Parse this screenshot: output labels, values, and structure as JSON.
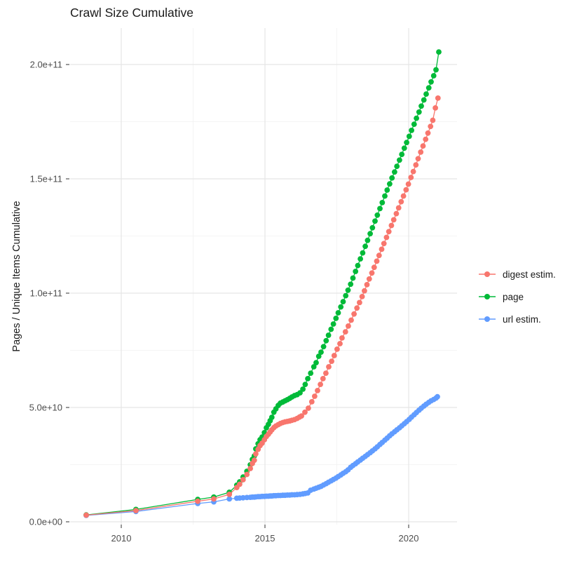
{
  "chart_data": {
    "type": "line",
    "title": "Crawl Size Cumulative",
    "xlabel": "",
    "ylabel": "Pages / Unique Items Cumulative",
    "legend_position": "right",
    "grid": true,
    "x_unit": "decimal_year",
    "y_unit_multiplier": 1000000000,
    "xlim": [
      2008.2,
      2021.7
    ],
    "ylim_e9": [
      0,
      216
    ],
    "y_ticks": [
      {
        "value": 0,
        "label": "0.0e+00"
      },
      {
        "value": 50,
        "label": "5.0e+10"
      },
      {
        "value": 100,
        "label": "1.0e+11"
      },
      {
        "value": 150,
        "label": "1.5e+11"
      },
      {
        "value": 200,
        "label": "2.0e+11"
      }
    ],
    "y_minor": [
      25,
      75,
      125,
      175
    ],
    "x_ticks": [
      {
        "value": 2010,
        "label": "2010"
      },
      {
        "value": 2015,
        "label": "2015"
      },
      {
        "value": 2020,
        "label": "2020"
      }
    ],
    "x_minor": [
      2012.5,
      2017.5
    ],
    "series": [
      {
        "name": "digest estim.",
        "color": "#F8766D",
        "points": [
          [
            2008.78,
            2.9
          ],
          [
            2010.51,
            4.9
          ],
          [
            2012.66,
            9.0
          ],
          [
            2013.22,
            10.0
          ],
          [
            2013.76,
            12.0
          ],
          [
            2014.02,
            15.0
          ],
          [
            2014.12,
            16.4
          ],
          [
            2014.24,
            18.4
          ],
          [
            2014.37,
            20.7
          ],
          [
            2014.49,
            23.3
          ],
          [
            2014.56,
            25.5
          ],
          [
            2014.63,
            26.9
          ],
          [
            2014.68,
            29.7
          ],
          [
            2014.76,
            31.7
          ],
          [
            2014.83,
            33.3
          ],
          [
            2014.9,
            34.4
          ],
          [
            2014.98,
            35.9
          ],
          [
            2015.05,
            37.3
          ],
          [
            2015.12,
            38.3
          ],
          [
            2015.18,
            39.3
          ],
          [
            2015.24,
            40.2
          ],
          [
            2015.31,
            41.2
          ],
          [
            2015.38,
            41.9
          ],
          [
            2015.46,
            42.5
          ],
          [
            2015.54,
            43.0
          ],
          [
            2015.62,
            43.4
          ],
          [
            2015.7,
            43.7
          ],
          [
            2015.78,
            43.9
          ],
          [
            2015.86,
            44.1
          ],
          [
            2015.94,
            44.4
          ],
          [
            2016.03,
            44.7
          ],
          [
            2016.12,
            45.2
          ],
          [
            2016.2,
            45.8
          ],
          [
            2016.27,
            46.3
          ],
          [
            2016.39,
            47.9
          ],
          [
            2016.51,
            49.7
          ],
          [
            2016.63,
            52.5
          ],
          [
            2016.73,
            54.9
          ],
          [
            2016.83,
            57.4
          ],
          [
            2016.93,
            60.1
          ],
          [
            2017.02,
            62.6
          ],
          [
            2017.12,
            65.0
          ],
          [
            2017.22,
            67.8
          ],
          [
            2017.32,
            70.2
          ],
          [
            2017.41,
            72.7
          ],
          [
            2017.51,
            75.5
          ],
          [
            2017.61,
            77.9
          ],
          [
            2017.68,
            80.4
          ],
          [
            2017.8,
            83.1
          ],
          [
            2017.9,
            85.6
          ],
          [
            2018.0,
            88.2
          ],
          [
            2018.1,
            90.9
          ],
          [
            2018.2,
            93.5
          ],
          [
            2018.29,
            95.9
          ],
          [
            2018.38,
            98.5
          ],
          [
            2018.46,
            101.0
          ],
          [
            2018.55,
            103.7
          ],
          [
            2018.63,
            106.2
          ],
          [
            2018.72,
            108.8
          ],
          [
            2018.8,
            111.3
          ],
          [
            2018.89,
            114.0
          ],
          [
            2018.97,
            116.5
          ],
          [
            2019.06,
            119.2
          ],
          [
            2019.14,
            121.7
          ],
          [
            2019.23,
            124.4
          ],
          [
            2019.31,
            126.9
          ],
          [
            2019.4,
            129.6
          ],
          [
            2019.48,
            132.1
          ],
          [
            2019.57,
            134.8
          ],
          [
            2019.65,
            137.3
          ],
          [
            2019.74,
            140.0
          ],
          [
            2019.82,
            142.5
          ],
          [
            2019.91,
            145.2
          ],
          [
            2019.99,
            147.7
          ],
          [
            2020.08,
            150.6
          ],
          [
            2020.16,
            153.2
          ],
          [
            2020.25,
            156.1
          ],
          [
            2020.33,
            158.8
          ],
          [
            2020.42,
            161.7
          ],
          [
            2020.5,
            164.4
          ],
          [
            2020.59,
            167.3
          ],
          [
            2020.67,
            170.0
          ],
          [
            2020.76,
            172.9
          ],
          [
            2020.84,
            175.6
          ],
          [
            2020.93,
            181.0
          ],
          [
            2021.02,
            185.3
          ]
        ]
      },
      {
        "name": "page",
        "color": "#00BA38",
        "points": [
          [
            2008.78,
            3.0
          ],
          [
            2010.51,
            5.4
          ],
          [
            2012.66,
            9.8
          ],
          [
            2013.22,
            10.8
          ],
          [
            2013.76,
            12.9
          ],
          [
            2014.02,
            16.0
          ],
          [
            2014.12,
            17.5
          ],
          [
            2014.24,
            19.6
          ],
          [
            2014.37,
            22.1
          ],
          [
            2014.49,
            24.9
          ],
          [
            2014.56,
            27.3
          ],
          [
            2014.63,
            28.8
          ],
          [
            2014.68,
            31.9
          ],
          [
            2014.76,
            34.1
          ],
          [
            2014.83,
            35.9
          ],
          [
            2014.9,
            37.1
          ],
          [
            2014.98,
            39.0
          ],
          [
            2015.05,
            41.1
          ],
          [
            2015.12,
            42.6
          ],
          [
            2015.18,
            44.2
          ],
          [
            2015.24,
            45.7
          ],
          [
            2015.31,
            47.9
          ],
          [
            2015.38,
            49.4
          ],
          [
            2015.46,
            50.9
          ],
          [
            2015.54,
            51.9
          ],
          [
            2015.62,
            52.4
          ],
          [
            2015.7,
            52.9
          ],
          [
            2015.78,
            53.4
          ],
          [
            2015.86,
            54.0
          ],
          [
            2015.94,
            54.6
          ],
          [
            2016.03,
            55.2
          ],
          [
            2016.12,
            55.6
          ],
          [
            2016.22,
            56.4
          ],
          [
            2016.32,
            58.0
          ],
          [
            2016.4,
            60.1
          ],
          [
            2016.49,
            62.6
          ],
          [
            2016.59,
            65.0
          ],
          [
            2016.7,
            67.8
          ],
          [
            2016.78,
            69.6
          ],
          [
            2016.87,
            72.4
          ],
          [
            2016.95,
            74.2
          ],
          [
            2017.04,
            76.6
          ],
          [
            2017.13,
            79.2
          ],
          [
            2017.21,
            81.6
          ],
          [
            2017.3,
            84.2
          ],
          [
            2017.38,
            86.5
          ],
          [
            2017.47,
            89.0
          ],
          [
            2017.55,
            91.4
          ],
          [
            2017.64,
            94.0
          ],
          [
            2017.72,
            96.3
          ],
          [
            2017.81,
            98.9
          ],
          [
            2017.89,
            101.3
          ],
          [
            2017.98,
            103.9
          ],
          [
            2018.06,
            106.6
          ],
          [
            2018.15,
            109.5
          ],
          [
            2018.23,
            112.1
          ],
          [
            2018.32,
            115.0
          ],
          [
            2018.4,
            117.6
          ],
          [
            2018.49,
            120.5
          ],
          [
            2018.57,
            123.1
          ],
          [
            2018.66,
            126.0
          ],
          [
            2018.74,
            128.6
          ],
          [
            2018.83,
            131.5
          ],
          [
            2018.91,
            134.1
          ],
          [
            2019.0,
            137.0
          ],
          [
            2019.08,
            139.6
          ],
          [
            2019.17,
            142.5
          ],
          [
            2019.25,
            145.1
          ],
          [
            2019.34,
            147.8
          ],
          [
            2019.42,
            150.4
          ],
          [
            2019.51,
            153.0
          ],
          [
            2019.59,
            155.5
          ],
          [
            2019.68,
            158.2
          ],
          [
            2019.76,
            160.7
          ],
          [
            2019.85,
            163.4
          ],
          [
            2019.93,
            165.9
          ],
          [
            2020.02,
            168.6
          ],
          [
            2020.1,
            171.2
          ],
          [
            2020.19,
            173.9
          ],
          [
            2020.27,
            176.5
          ],
          [
            2020.36,
            179.2
          ],
          [
            2020.44,
            181.8
          ],
          [
            2020.53,
            184.5
          ],
          [
            2020.61,
            187.1
          ],
          [
            2020.7,
            189.8
          ],
          [
            2020.78,
            192.4
          ],
          [
            2020.87,
            195.1
          ],
          [
            2020.95,
            197.7
          ],
          [
            2021.05,
            205.5
          ]
        ]
      },
      {
        "name": "url estim.",
        "color": "#619CFF",
        "points": [
          [
            2008.78,
            2.8
          ],
          [
            2010.51,
            4.5
          ],
          [
            2012.66,
            8.0
          ],
          [
            2013.22,
            8.7
          ],
          [
            2013.76,
            10.0
          ],
          [
            2014.02,
            10.3
          ],
          [
            2014.12,
            10.4
          ],
          [
            2014.24,
            10.5
          ],
          [
            2014.37,
            10.6
          ],
          [
            2014.49,
            10.7
          ],
          [
            2014.56,
            10.8
          ],
          [
            2014.63,
            10.8
          ],
          [
            2014.68,
            10.9
          ],
          [
            2014.76,
            11.0
          ],
          [
            2014.83,
            11.0
          ],
          [
            2014.9,
            11.1
          ],
          [
            2014.98,
            11.1
          ],
          [
            2015.05,
            11.2
          ],
          [
            2015.12,
            11.2
          ],
          [
            2015.18,
            11.3
          ],
          [
            2015.24,
            11.3
          ],
          [
            2015.31,
            11.4
          ],
          [
            2015.38,
            11.4
          ],
          [
            2015.46,
            11.5
          ],
          [
            2015.54,
            11.5
          ],
          [
            2015.62,
            11.6
          ],
          [
            2015.7,
            11.6
          ],
          [
            2015.78,
            11.7
          ],
          [
            2015.86,
            11.7
          ],
          [
            2015.94,
            11.8
          ],
          [
            2016.03,
            11.8
          ],
          [
            2016.12,
            11.9
          ],
          [
            2016.22,
            12.0
          ],
          [
            2016.32,
            12.2
          ],
          [
            2016.4,
            12.4
          ],
          [
            2016.49,
            12.6
          ],
          [
            2016.59,
            13.8
          ],
          [
            2016.7,
            14.3
          ],
          [
            2016.78,
            14.7
          ],
          [
            2016.87,
            15.1
          ],
          [
            2016.95,
            15.5
          ],
          [
            2017.04,
            16.1
          ],
          [
            2017.13,
            16.7
          ],
          [
            2017.21,
            17.3
          ],
          [
            2017.3,
            17.9
          ],
          [
            2017.38,
            18.5
          ],
          [
            2017.47,
            19.1
          ],
          [
            2017.55,
            19.8
          ],
          [
            2017.64,
            20.5
          ],
          [
            2017.72,
            21.2
          ],
          [
            2017.81,
            21.9
          ],
          [
            2017.89,
            22.7
          ],
          [
            2017.98,
            23.8
          ],
          [
            2018.06,
            24.6
          ],
          [
            2018.15,
            25.4
          ],
          [
            2018.23,
            26.2
          ],
          [
            2018.32,
            27.0
          ],
          [
            2018.4,
            27.8
          ],
          [
            2018.49,
            28.6
          ],
          [
            2018.57,
            29.4
          ],
          [
            2018.66,
            30.2
          ],
          [
            2018.74,
            31.0
          ],
          [
            2018.83,
            31.9
          ],
          [
            2018.91,
            32.8
          ],
          [
            2019.0,
            33.8
          ],
          [
            2019.08,
            34.7
          ],
          [
            2019.17,
            35.7
          ],
          [
            2019.25,
            36.6
          ],
          [
            2019.34,
            37.6
          ],
          [
            2019.42,
            38.5
          ],
          [
            2019.51,
            39.4
          ],
          [
            2019.59,
            40.2
          ],
          [
            2019.68,
            41.1
          ],
          [
            2019.76,
            42.0
          ],
          [
            2019.85,
            42.9
          ],
          [
            2019.93,
            43.8
          ],
          [
            2020.02,
            44.8
          ],
          [
            2020.1,
            45.8
          ],
          [
            2020.19,
            46.8
          ],
          [
            2020.27,
            47.8
          ],
          [
            2020.36,
            48.8
          ],
          [
            2020.44,
            49.7
          ],
          [
            2020.53,
            50.6
          ],
          [
            2020.61,
            51.4
          ],
          [
            2020.7,
            52.2
          ],
          [
            2020.78,
            52.9
          ],
          [
            2020.87,
            53.5
          ],
          [
            2020.95,
            54.1
          ],
          [
            2021.0,
            54.7
          ]
        ]
      }
    ]
  },
  "style": {
    "grid_major_color": "#e5e5e5",
    "grid_minor_color": "#f0f0f0",
    "tick_mark_color": "#333333",
    "tick_label_color": "#4d4d4d",
    "text_color": "#1a1a1a",
    "background": "#ffffff"
  }
}
